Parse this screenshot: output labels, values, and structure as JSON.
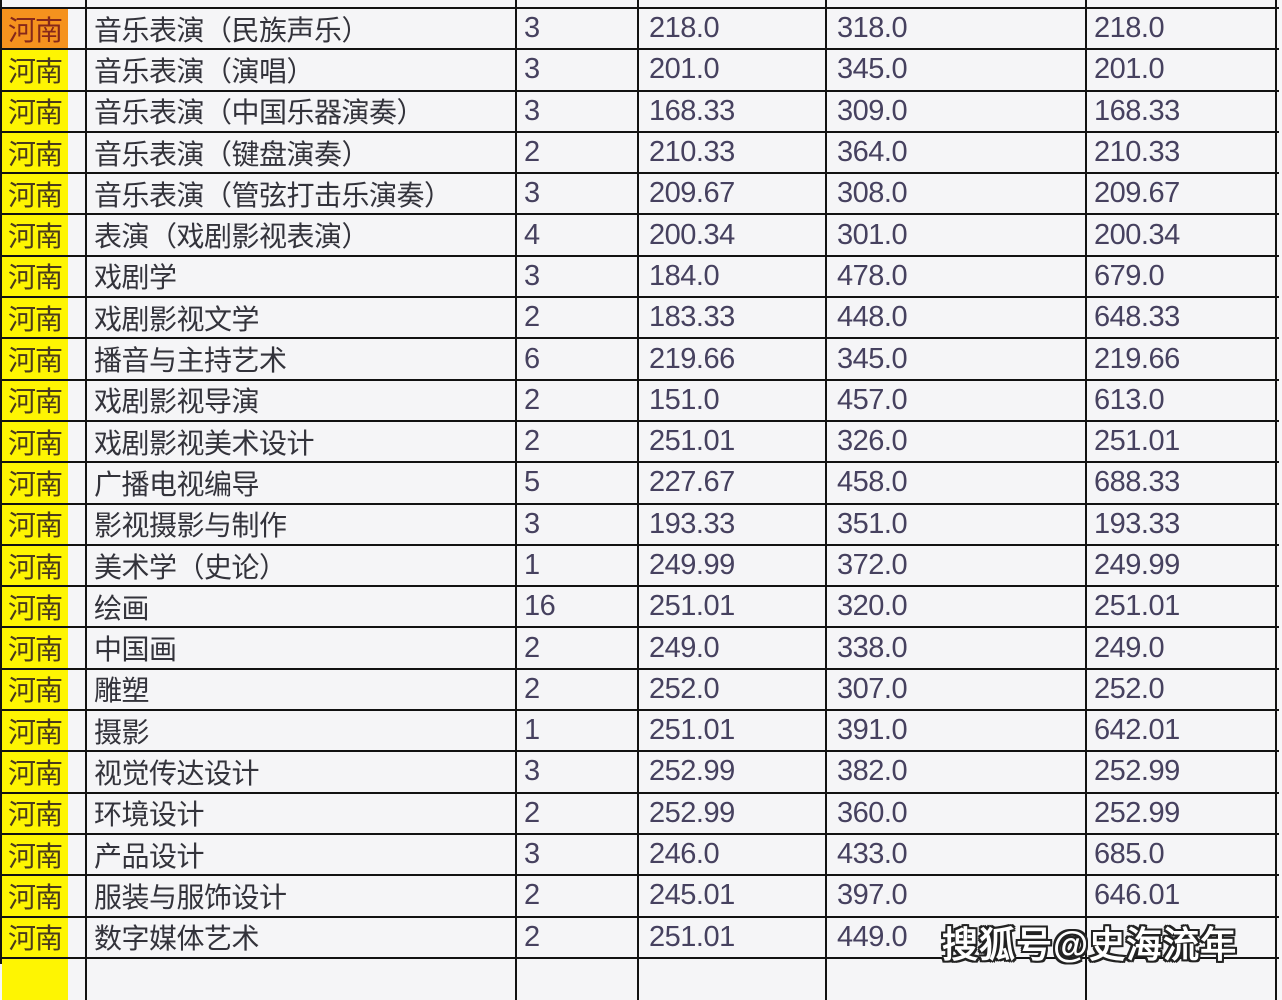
{
  "colors": {
    "yellow_highlight": "#fef502",
    "orange_highlight": "#f5921e",
    "border": "#121212",
    "number_text": "#46415f"
  },
  "watermark": {
    "text": "搜狐号@史海流年"
  },
  "table": {
    "columns": [
      "province",
      "major",
      "count",
      "score1",
      "score2",
      "score3"
    ],
    "rows": [
      {
        "province": "河南",
        "highlight": "orange",
        "major": "音乐表演（民族声乐）",
        "count": "3",
        "score1": "218.0",
        "score2": "318.0",
        "score3": "218.0"
      },
      {
        "province": "河南",
        "highlight": "yellow",
        "major": "音乐表演（演唱）",
        "count": "3",
        "score1": "201.0",
        "score2": "345.0",
        "score3": "201.0"
      },
      {
        "province": "河南",
        "highlight": "yellow",
        "major": "音乐表演（中国乐器演奏）",
        "count": "3",
        "score1": "168.33",
        "score2": "309.0",
        "score3": "168.33"
      },
      {
        "province": "河南",
        "highlight": "yellow",
        "major": "音乐表演（键盘演奏）",
        "count": "2",
        "score1": "210.33",
        "score2": "364.0",
        "score3": "210.33"
      },
      {
        "province": "河南",
        "highlight": "yellow",
        "major": "音乐表演（管弦打击乐演奏）",
        "count": "3",
        "score1": "209.67",
        "score2": "308.0",
        "score3": "209.67"
      },
      {
        "province": "河南",
        "highlight": "yellow",
        "major": "表演（戏剧影视表演）",
        "count": "4",
        "score1": "200.34",
        "score2": "301.0",
        "score3": "200.34"
      },
      {
        "province": "河南",
        "highlight": "yellow",
        "major": "戏剧学",
        "count": "3",
        "score1": "184.0",
        "score2": "478.0",
        "score3": "679.0"
      },
      {
        "province": "河南",
        "highlight": "yellow",
        "major": "戏剧影视文学",
        "count": "2",
        "score1": "183.33",
        "score2": "448.0",
        "score3": "648.33"
      },
      {
        "province": "河南",
        "highlight": "yellow",
        "major": "播音与主持艺术",
        "count": "6",
        "score1": "219.66",
        "score2": "345.0",
        "score3": "219.66"
      },
      {
        "province": "河南",
        "highlight": "yellow",
        "major": "戏剧影视导演",
        "count": "2",
        "score1": "151.0",
        "score2": "457.0",
        "score3": "613.0"
      },
      {
        "province": "河南",
        "highlight": "yellow",
        "major": "戏剧影视美术设计",
        "count": "2",
        "score1": "251.01",
        "score2": "326.0",
        "score3": "251.01"
      },
      {
        "province": "河南",
        "highlight": "yellow",
        "major": "广播电视编导",
        "count": "5",
        "score1": "227.67",
        "score2": "458.0",
        "score3": "688.33"
      },
      {
        "province": "河南",
        "highlight": "yellow",
        "major": "影视摄影与制作",
        "count": "3",
        "score1": "193.33",
        "score2": "351.0",
        "score3": "193.33"
      },
      {
        "province": "河南",
        "highlight": "yellow",
        "major": "美术学（史论）",
        "count": "1",
        "score1": "249.99",
        "score2": "372.0",
        "score3": "249.99"
      },
      {
        "province": "河南",
        "highlight": "yellow",
        "major": "绘画",
        "count": "16",
        "score1": "251.01",
        "score2": "320.0",
        "score3": "251.01"
      },
      {
        "province": "河南",
        "highlight": "yellow",
        "major": "中国画",
        "count": "2",
        "score1": "249.0",
        "score2": "338.0",
        "score3": "249.0"
      },
      {
        "province": "河南",
        "highlight": "yellow",
        "major": "雕塑",
        "count": "2",
        "score1": "252.0",
        "score2": "307.0",
        "score3": "252.0"
      },
      {
        "province": "河南",
        "highlight": "yellow",
        "major": "摄影",
        "count": "1",
        "score1": "251.01",
        "score2": "391.0",
        "score3": "642.01"
      },
      {
        "province": "河南",
        "highlight": "yellow",
        "major": "视觉传达设计",
        "count": "3",
        "score1": "252.99",
        "score2": "382.0",
        "score3": "252.99"
      },
      {
        "province": "河南",
        "highlight": "yellow",
        "major": "环境设计",
        "count": "2",
        "score1": "252.99",
        "score2": "360.0",
        "score3": "252.99"
      },
      {
        "province": "河南",
        "highlight": "yellow",
        "major": "产品设计",
        "count": "3",
        "score1": "246.0",
        "score2": "433.0",
        "score3": "685.0"
      },
      {
        "province": "河南",
        "highlight": "yellow",
        "major": "服装与服饰设计",
        "count": "2",
        "score1": "245.01",
        "score2": "397.0",
        "score3": "646.01"
      },
      {
        "province": "河南",
        "highlight": "yellow",
        "major": "数字媒体艺术",
        "count": "2",
        "score1": "251.01",
        "score2": "449.0",
        "score3": ""
      }
    ]
  }
}
